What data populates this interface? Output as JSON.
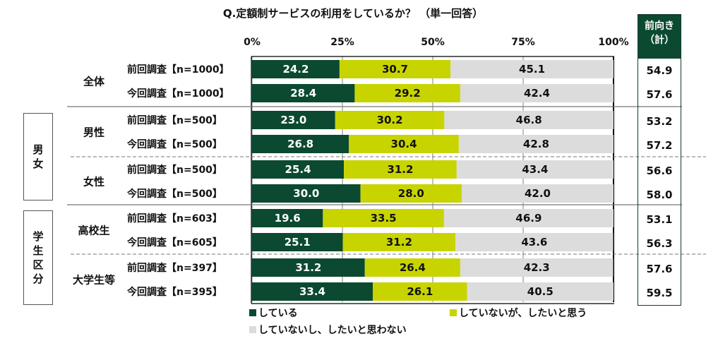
{
  "chart_data": {
    "type": "bar",
    "orientation": "horizontal",
    "stacked": true,
    "title": "Q.定額制サービスの利用をしているか？ （単一回答）",
    "xlim": [
      0,
      100
    ],
    "x_ticks": [
      "0%",
      "25%",
      "50%",
      "75%",
      "100%"
    ],
    "groups": [
      {
        "category": "",
        "label": "全体",
        "rows": [
          0,
          1
        ]
      },
      {
        "category": "男女",
        "label": "男性",
        "rows": [
          2,
          3
        ]
      },
      {
        "category": "男女",
        "label": "女性",
        "rows": [
          4,
          5
        ]
      },
      {
        "category": "学生区分",
        "label": "高校生",
        "rows": [
          6,
          7
        ]
      },
      {
        "category": "学生区分",
        "label": "大学生等",
        "rows": [
          8,
          9
        ]
      }
    ],
    "categories": [
      "前回調査【n=1000】",
      "今回調査【n=1000】",
      "前回調査【n=500】",
      "今回調査【n=500】",
      "前回調査【n=500】",
      "今回調査【n=500】",
      "前回調査【n=603】",
      "今回調査【n=605】",
      "前回調査【n=397】",
      "今回調査【n=395】"
    ],
    "series": [
      {
        "name": "している",
        "color": "#0b4a30",
        "label_color": "#ffffff",
        "values": [
          24.2,
          28.4,
          23.0,
          26.8,
          25.4,
          30.0,
          19.6,
          25.1,
          31.2,
          33.4
        ]
      },
      {
        "name": "していないが、したいと思う",
        "color": "#c8d400",
        "label_color": "#111111",
        "values": [
          30.7,
          29.2,
          30.2,
          30.4,
          31.2,
          28.0,
          33.5,
          31.2,
          26.4,
          26.1
        ]
      },
      {
        "name": "していないし、したいと思わない",
        "color": "#dcdcdc",
        "label_color": "#111111",
        "values": [
          45.1,
          42.4,
          46.8,
          42.8,
          43.4,
          42.0,
          46.9,
          43.6,
          42.3,
          40.5
        ]
      }
    ],
    "side_table": {
      "header_line1": "前向き",
      "header_line2": "（計）",
      "values": [
        "54.9",
        "57.6",
        "53.2",
        "57.2",
        "56.6",
        "58.0",
        "53.1",
        "56.3",
        "57.6",
        "59.5"
      ]
    },
    "legend_placement": "bottom",
    "grid": true
  },
  "category_boxes": [
    {
      "label": "男女",
      "chars": [
        "男",
        "女"
      ]
    },
    {
      "label": "学生区分",
      "chars": [
        "学",
        "生",
        "区",
        "分"
      ]
    }
  ],
  "colors": {
    "header_bg": "#0b4a30",
    "grid": "#808080"
  }
}
